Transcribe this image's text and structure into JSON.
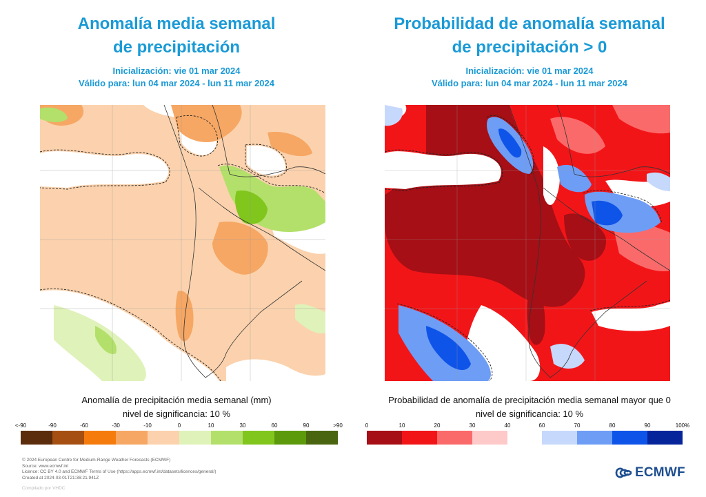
{
  "left_panel": {
    "title_line1": "Anomalía media semanal",
    "title_line2": "de precipitación",
    "init": "Inicialización: vie 01 mar 2024",
    "valid": "Válido para: lun 04 mar 2024 - lun 11 mar 2024",
    "caption_line1": "Anomalía de precipitación media semanal (mm)",
    "caption_line2": "nivel de significancia: 10 %",
    "legend": {
      "ticks": [
        "<-90",
        "-90",
        "-60",
        "-30",
        "-10",
        "0",
        "10",
        "30",
        "60",
        "90",
        ">90"
      ],
      "colors": [
        "#5c2d0c",
        "#a54f12",
        "#f57c0c",
        "#f6a764",
        "#fbd2ad",
        "#dff2b9",
        "#b3e06a",
        "#80c61d",
        "#5c9a0c",
        "#49650f"
      ]
    }
  },
  "right_panel": {
    "title_line1": "Probabilidad de anomalía semanal",
    "title_line2": "de precipitación > 0",
    "init": "Inicialización: vie 01 mar 2024",
    "valid": "Válido para: lun 04 mar 2024 - lun 11 mar 2024",
    "caption_line1": "Probabilidad de anomalía de precipitación media semanal mayor que 0",
    "caption_line2": "nivel de significancia: 10 %",
    "legend": {
      "ticks_low": [
        "0",
        "10",
        "20",
        "30",
        "40"
      ],
      "ticks_high": [
        "60",
        "70",
        "80",
        "90",
        "100%"
      ],
      "colors_low": [
        "#a50f15",
        "#f21518",
        "#fb6a6a",
        "#fdc9c9"
      ],
      "colors_high": [
        "#c6d8fb",
        "#6e9df5",
        "#0f54e8",
        "#06259a"
      ]
    }
  },
  "footer": {
    "line1": "© 2024 European Centre for Medium-Range Weather Forecasts (ECMWF)",
    "line2": "Source: www.ecmwf.int",
    "line3": "Licence: CC BY 4.0 and ECMWF Terms of Use (https://apps.ecmwf.int/datasets/licences/general/)",
    "line4": "Created at 2024-03-01T21:36:21.941Z",
    "compiled": "Compilado por VHDC"
  },
  "logo": {
    "text": "ECMWF",
    "color": "#1e4f8f"
  }
}
